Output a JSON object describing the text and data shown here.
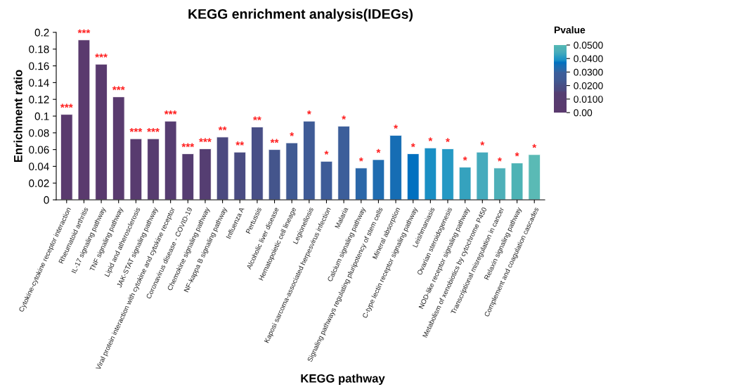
{
  "chart_data": {
    "type": "bar",
    "title": "KEGG enrichment analysis(IDEGs)",
    "xlabel": "KEGG pathway",
    "ylabel": "Enrichment ratio",
    "clabel": "Pvalue",
    "categories": [
      "Cytokine-cytokine receptor interaction",
      "Rheumatoid arthritis",
      "IL-17 signaling pathway",
      "TNF signaling pathway",
      "Lipid and atherosclerosis",
      "JAK-STAT signaling pathway",
      "Viral protein interaction with cytokine and cytokine receptor",
      "Coronavirus disease - COVID-19",
      "Chemokine signaling pathway",
      "NF-kappa B signaling pathway",
      "Influenza A",
      "Pertussis",
      "Alcoholic liver disease",
      "Hematopoietic cell lineage",
      "Legionellosis",
      "Kaposi sarcoma-associated herpesvirus infection",
      "Malaria",
      "Calcium signaling pathway",
      "Signaling pathways regulating pluripotency of stem cells",
      "Mineral absorption",
      "C-type lectin receptor signaling pathway",
      "Leishmaniasis",
      "Ovarian steroidogenesis",
      "NOD-like receptor signaling pathway",
      "Metabolism of xenobiotics by cytochrome P450",
      "Transcriptional misregulation in cancer",
      "Relaxin signaling pathway",
      "Complement and coagulation cascades"
    ],
    "values": [
      0.102,
      0.191,
      0.162,
      0.123,
      0.073,
      0.073,
      0.094,
      0.055,
      0.061,
      0.075,
      0.057,
      0.087,
      0.06,
      0.068,
      0.094,
      0.046,
      0.088,
      0.038,
      0.048,
      0.077,
      0.055,
      0.062,
      0.061,
      0.039,
      0.057,
      0.038,
      0.044,
      0.054
    ],
    "value_labels": [
      "***",
      "***",
      "***",
      "***",
      "***",
      "***",
      "***",
      "***",
      "***",
      "**",
      "**",
      "**",
      "**",
      "*",
      "*",
      "*",
      "*",
      "*",
      "*",
      "*",
      "*",
      "*",
      "*",
      "*",
      "*",
      "*",
      "*",
      "*"
    ],
    "colors": [
      "#5a3a6e",
      "#5a3a6e",
      "#593a6e",
      "#593b6f",
      "#583b6f",
      "#573c70",
      "#563d71",
      "#553d71",
      "#553e72",
      "#4b4a80",
      "#4a4c82",
      "#484f86",
      "#44558c",
      "#405a93",
      "#3f5b96",
      "#3e5c98",
      "#3c5e9a",
      "#2b67a8",
      "#1f6cb0",
      "#166db4",
      "#0070c0",
      "#1a8fc4",
      "#2599c4",
      "#35a2be",
      "#45abbd",
      "#4eb0b8",
      "#4db3b5",
      "#5abab5"
    ],
    "ylim": [
      0,
      0.2
    ],
    "yticks": [
      0,
      0.02,
      0.04,
      0.06,
      0.08,
      0.1,
      0.12,
      0.14,
      0.16,
      0.18,
      0.2
    ],
    "clim": [
      0,
      0.05
    ],
    "cticks": [
      {
        "value": 0,
        "label": "0.00"
      },
      {
        "value": 0.01,
        "label": "0.0100"
      },
      {
        "value": 0.02,
        "label": "0.0200"
      },
      {
        "value": 0.03,
        "label": "0.0300"
      },
      {
        "value": 0.04,
        "label": "0.0400"
      },
      {
        "value": 0.05,
        "label": "0.0500"
      }
    ],
    "grid": false,
    "legend": false
  }
}
